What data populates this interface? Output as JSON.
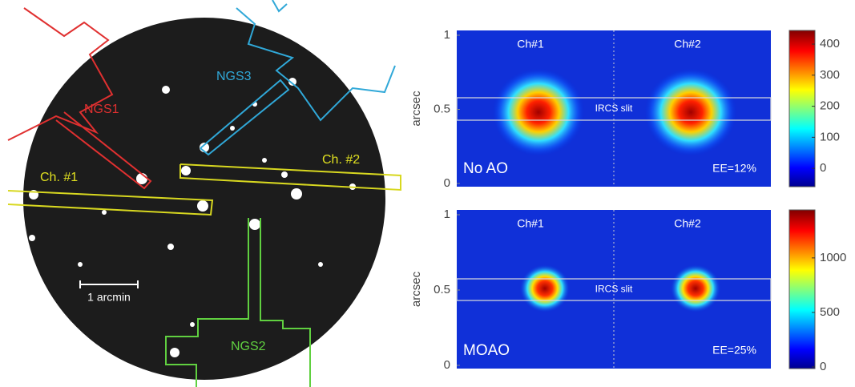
{
  "field": {
    "ngs1": "NGS1",
    "ngs2": "NGS2",
    "ngs3": "NGS3",
    "ch1": "Ch. #1",
    "ch2": "Ch. #2",
    "scale_bar": "1 arcmin"
  },
  "panels": [
    {
      "ylabel": "arcsec",
      "ylim": [
        0,
        1
      ],
      "yticks": [
        1,
        0.5,
        0
      ],
      "channels": [
        "Ch#1",
        "Ch#2"
      ],
      "slit": "IRCS slit",
      "mode": "No AO",
      "ee": "EE=12%",
      "colorbar": {
        "lim": [
          -59,
          444
        ],
        "ticks": [
          400,
          300,
          200,
          100,
          0
        ]
      }
    },
    {
      "ylabel": "arcsec",
      "ylim": [
        0,
        1
      ],
      "yticks": [
        1,
        0.5,
        0
      ],
      "channels": [
        "Ch#1",
        "Ch#2"
      ],
      "slit": "IRCS slit",
      "mode": "MOAO",
      "ee": "EE=25%",
      "colorbar": {
        "lim": [
          -15,
          1440
        ],
        "ticks": [
          1000,
          500,
          0
        ]
      }
    }
  ]
}
